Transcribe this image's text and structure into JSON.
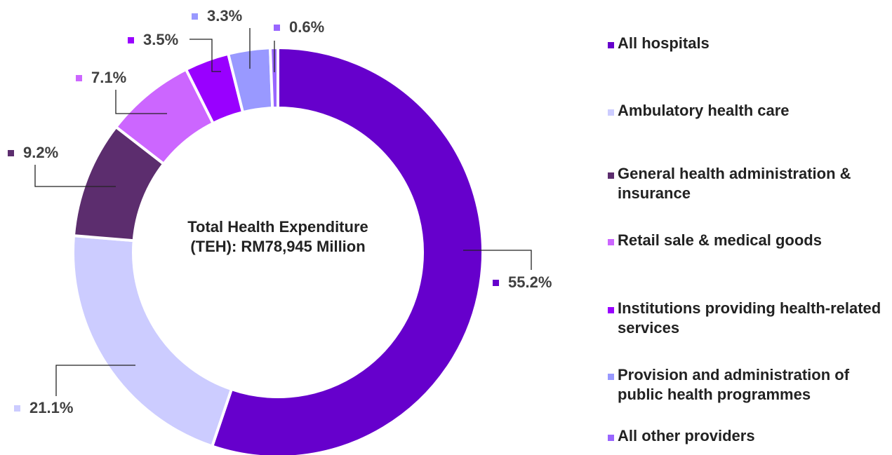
{
  "chart_data": {
    "type": "donut",
    "title": "Total Health Expenditure (TEH): RM78,945 Million",
    "categories": [
      "All hospitals",
      "Ambulatory health care",
      "General health administration & insurance",
      "Retail sale & medical goods",
      "Institutions providing health-related services",
      "Provision and administration of public health programmes",
      "All other providers"
    ],
    "values": [
      55.2,
      21.1,
      9.2,
      7.1,
      3.5,
      3.3,
      0.6
    ],
    "value_labels": [
      "55.2%",
      "21.1%",
      "9.2%",
      "7.1%",
      "3.5%",
      "3.3%",
      "0.6%"
    ],
    "colors": [
      "#6600cc",
      "#ccccff",
      "#5c2d6e",
      "#cc66ff",
      "#9900ff",
      "#9999ff",
      "#9966ff"
    ],
    "legend": "right"
  }
}
